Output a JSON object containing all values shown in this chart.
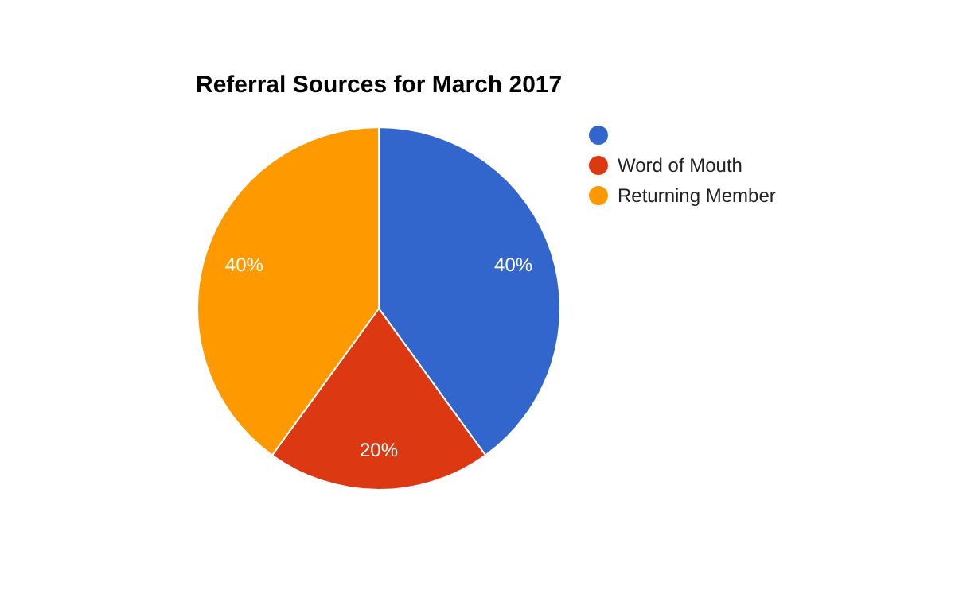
{
  "chart_data": {
    "type": "pie",
    "title": "Referral Sources for March 2017",
    "categories": [
      null,
      "Word of Mouth",
      "Returning Member"
    ],
    "values": [
      40,
      20,
      40
    ],
    "colors": [
      "#3366cc",
      "#dc3912",
      "#ff9900"
    ],
    "value_labels": [
      "40%",
      "20%",
      "40%"
    ],
    "legend": "right"
  }
}
